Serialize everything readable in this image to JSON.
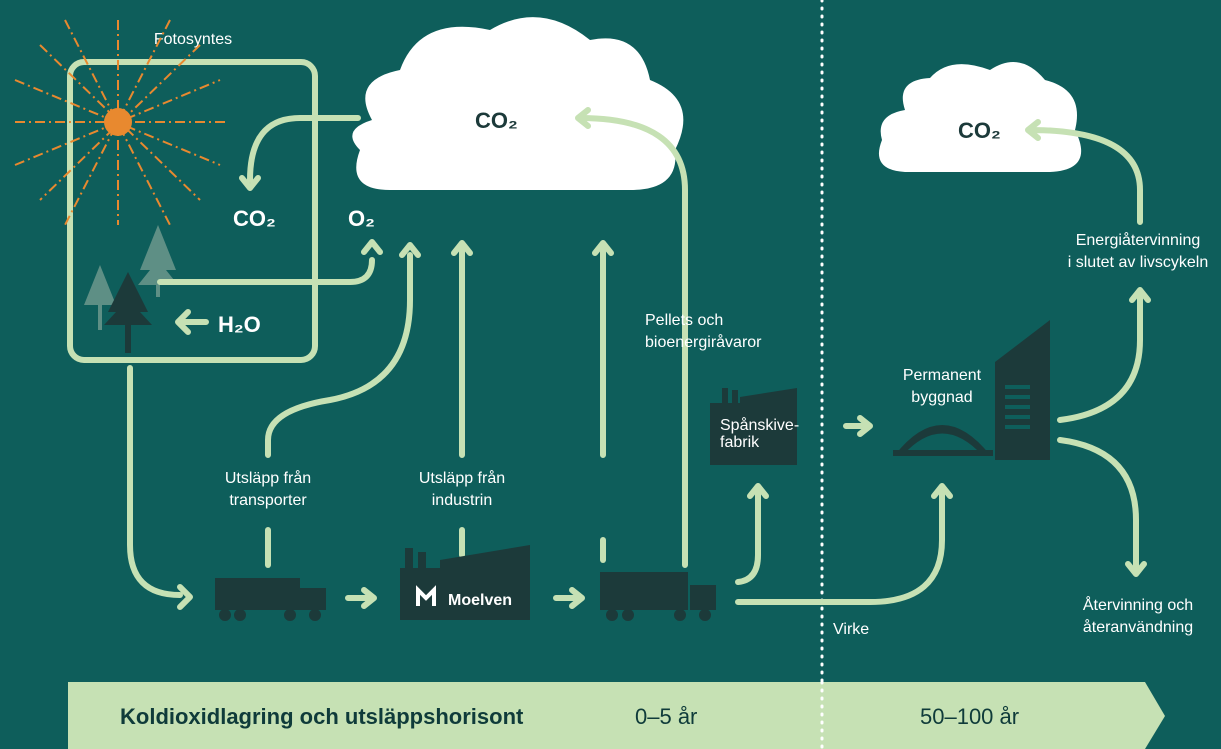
{
  "photosynthesis": {
    "title": "Fotosyntes",
    "co2": "CO₂",
    "o2": "O₂",
    "h2o": "H₂O"
  },
  "clouds": {
    "left": "CO₂",
    "right": "CO₂"
  },
  "labels": {
    "transport": [
      "Utsläpp från",
      "transporter"
    ],
    "industry": [
      "Utsläpp från",
      "industrin"
    ],
    "pellets": [
      "Pellets och",
      "bioenergiråvaror"
    ],
    "chipboard": [
      "Spånskive-",
      "fabrik"
    ],
    "building": [
      "Permanent",
      "byggnad"
    ],
    "energy": [
      "Energiåtervinning",
      "i slutet av livscykeln"
    ],
    "recycling": [
      "Återvinning och",
      "återanvändning"
    ],
    "timber": "Virke"
  },
  "logo": "Moelven",
  "footer": {
    "title": "Koldioxidlagring och utsläppshorisont",
    "short": "0–5 år",
    "long": "50–100 år"
  }
}
